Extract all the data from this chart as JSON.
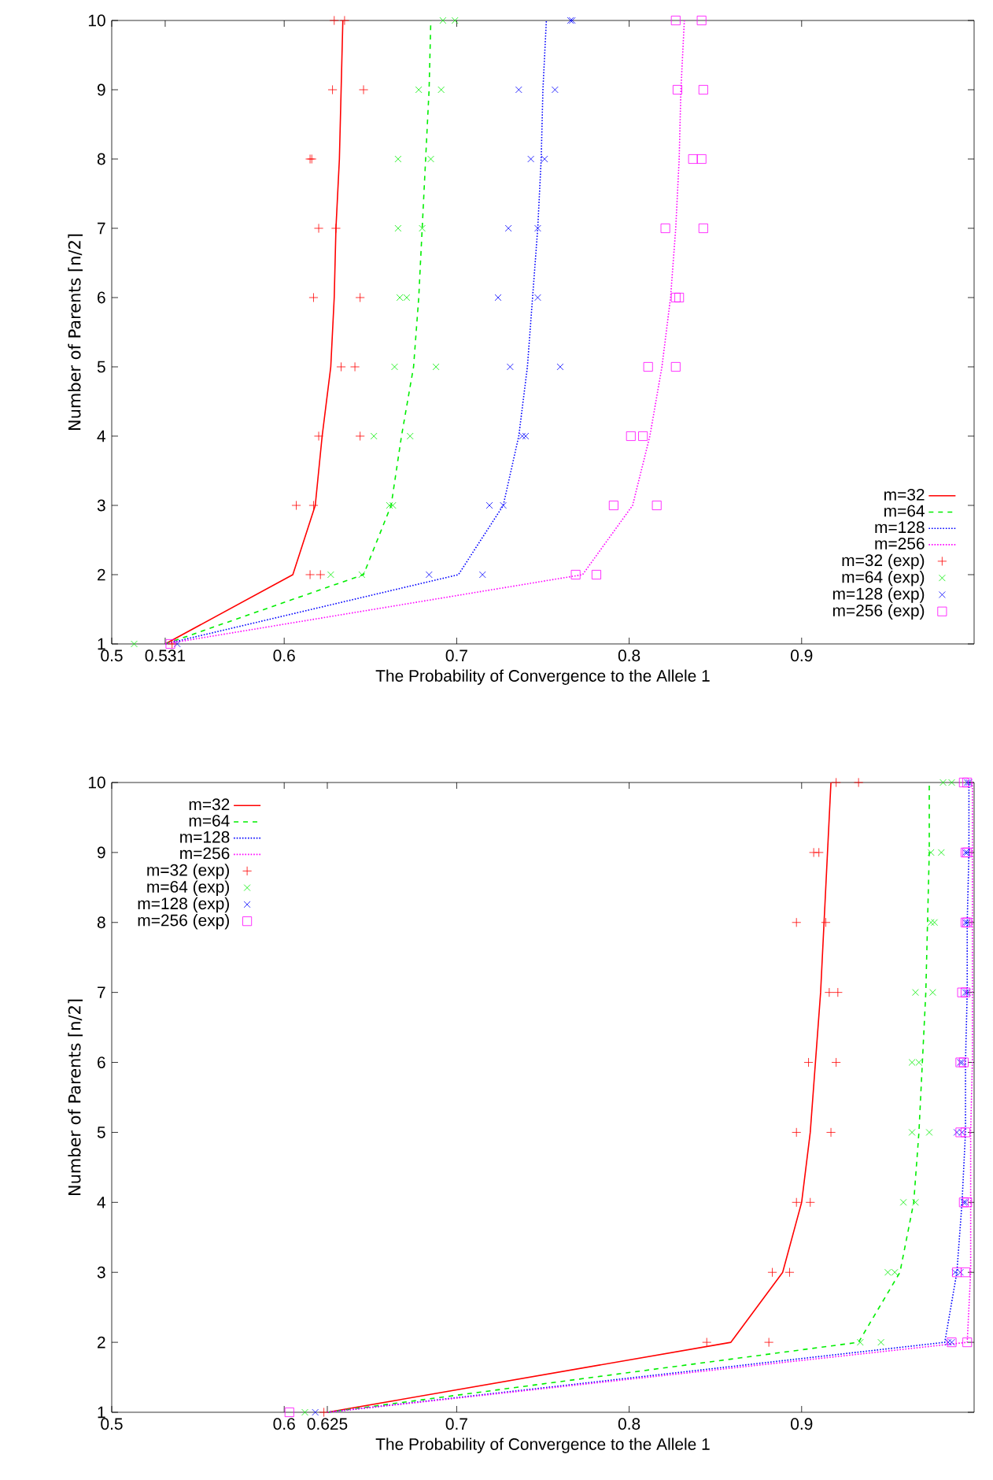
{
  "chart_data": [
    {
      "type": "line",
      "xlabel": "The Probability of Convergence to the Allele 1",
      "ylabel": "Number of Parents ⌈n/2⌉",
      "xlim": [
        0.5,
        1.0
      ],
      "xticks": [
        0.5,
        0.531,
        0.6,
        0.7,
        0.8,
        0.9
      ],
      "ylim": [
        1,
        10
      ],
      "yticks": [
        1,
        2,
        3,
        4,
        5,
        6,
        7,
        8,
        9,
        10
      ],
      "legend": "bottom right",
      "series": [
        {
          "name": "m=32",
          "color": "#ff0000",
          "line_style": "solid",
          "x": [
            0.531,
            0.605,
            0.618,
            0.622,
            0.627,
            0.629,
            0.63,
            0.632,
            0.633,
            0.634
          ],
          "values": [
            1,
            2,
            3,
            4,
            5,
            6,
            7,
            8,
            9,
            10
          ]
        },
        {
          "name": "m=64",
          "color": "#00ee00",
          "line_style": "dashed",
          "x": [
            0.531,
            0.646,
            0.662,
            0.668,
            0.675,
            0.678,
            0.68,
            0.682,
            0.684,
            0.685
          ],
          "values": [
            1,
            2,
            3,
            4,
            5,
            6,
            7,
            8,
            9,
            10
          ]
        },
        {
          "name": "m=128",
          "color": "#0000ff",
          "line_style": "dotted",
          "x": [
            0.531,
            0.701,
            0.727,
            0.736,
            0.741,
            0.744,
            0.747,
            0.749,
            0.75,
            0.752
          ],
          "values": [
            1,
            2,
            3,
            4,
            5,
            6,
            7,
            8,
            9,
            10
          ]
        },
        {
          "name": "m=256",
          "color": "#ff00ff",
          "line_style": "dotted",
          "x": [
            0.531,
            0.773,
            0.802,
            0.812,
            0.819,
            0.824,
            0.827,
            0.829,
            0.83,
            0.832
          ],
          "values": [
            1,
            2,
            3,
            4,
            5,
            6,
            7,
            8,
            9,
            10
          ]
        },
        {
          "name": "m=32 (exp)",
          "type": "scatter",
          "color": "#ff0000",
          "marker": "plus",
          "x": [
            0.535,
            0.615,
            0.621,
            0.607,
            0.617,
            0.62,
            0.644,
            0.633,
            0.641,
            0.617,
            0.644,
            0.62,
            0.63,
            0.615,
            0.616,
            0.628,
            0.646,
            0.629,
            0.635
          ],
          "values": [
            1,
            2,
            2,
            3,
            3,
            4,
            4,
            5,
            5,
            6,
            6,
            7,
            7,
            8,
            8,
            9,
            9,
            10,
            10
          ]
        },
        {
          "name": "m=64 (exp)",
          "type": "scatter",
          "color": "#00ee00",
          "marker": "cross",
          "x": [
            0.513,
            0.627,
            0.645,
            0.661,
            0.663,
            0.652,
            0.673,
            0.664,
            0.688,
            0.667,
            0.671,
            0.666,
            0.68,
            0.666,
            0.685,
            0.678,
            0.691,
            0.692,
            0.699
          ],
          "values": [
            1,
            2,
            2,
            3,
            3,
            4,
            4,
            5,
            5,
            6,
            6,
            7,
            7,
            8,
            8,
            9,
            9,
            10,
            10
          ]
        },
        {
          "name": "m=128 (exp)",
          "type": "scatter",
          "color": "#0000ff",
          "marker": "cross",
          "x": [
            0.538,
            0.684,
            0.715,
            0.719,
            0.727,
            0.738,
            0.74,
            0.731,
            0.76,
            0.724,
            0.747,
            0.73,
            0.747,
            0.743,
            0.751,
            0.736,
            0.757,
            0.766,
            0.767
          ],
          "values": [
            1,
            2,
            2,
            3,
            3,
            4,
            4,
            5,
            5,
            6,
            6,
            7,
            7,
            8,
            8,
            9,
            9,
            10,
            10
          ]
        },
        {
          "name": "m=256 (exp)",
          "type": "scatter",
          "color": "#ff00ff",
          "marker": "square",
          "x": [
            0.534,
            0.769,
            0.781,
            0.791,
            0.816,
            0.801,
            0.808,
            0.811,
            0.827,
            0.827,
            0.829,
            0.821,
            0.843,
            0.837,
            0.842,
            0.828,
            0.843,
            0.827,
            0.842
          ],
          "values": [
            1,
            2,
            2,
            3,
            3,
            4,
            4,
            5,
            5,
            6,
            6,
            7,
            7,
            8,
            8,
            9,
            9,
            10,
            10
          ]
        }
      ]
    },
    {
      "type": "line",
      "xlabel": "The Probability of Convergence to the Allele 1",
      "ylabel": "Number of Parents ⌈n/2⌉",
      "xlim": [
        0.5,
        1.0
      ],
      "xticks": [
        0.5,
        0.6,
        0.625,
        0.7,
        0.8,
        0.9
      ],
      "ylim": [
        1,
        10
      ],
      "yticks": [
        1,
        2,
        3,
        4,
        5,
        6,
        7,
        8,
        9,
        10
      ],
      "legend": "top left",
      "series": [
        {
          "name": "m=32",
          "color": "#ff0000",
          "line_style": "solid",
          "x": [
            0.625,
            0.859,
            0.889,
            0.9,
            0.905,
            0.908,
            0.911,
            0.913,
            0.915,
            0.917
          ],
          "values": [
            1,
            2,
            3,
            4,
            5,
            6,
            7,
            8,
            9,
            10
          ]
        },
        {
          "name": "m=64",
          "color": "#00ee00",
          "line_style": "dashed",
          "x": [
            0.625,
            0.933,
            0.957,
            0.965,
            0.968,
            0.97,
            0.972,
            0.973,
            0.974,
            0.974
          ],
          "values": [
            1,
            2,
            3,
            4,
            5,
            6,
            7,
            8,
            9,
            10
          ]
        },
        {
          "name": "m=128",
          "color": "#0000ff",
          "line_style": "dotted",
          "x": [
            0.625,
            0.983,
            0.99,
            0.993,
            0.995,
            0.995,
            0.996,
            0.996,
            0.997,
            0.997
          ],
          "values": [
            1,
            2,
            3,
            4,
            5,
            6,
            7,
            8,
            9,
            10
          ]
        },
        {
          "name": "m=256",
          "color": "#ff00ff",
          "line_style": "dotted",
          "x": [
            0.625,
            0.996,
            0.998,
            0.998,
            0.998,
            0.999,
            0.999,
            0.999,
            0.999,
            0.999
          ],
          "values": [
            1,
            2,
            3,
            4,
            5,
            6,
            7,
            8,
            9,
            10
          ]
        },
        {
          "name": "m=32 (exp)",
          "type": "scatter",
          "color": "#ff0000",
          "marker": "plus",
          "x": [
            0.623,
            0.845,
            0.881,
            0.883,
            0.893,
            0.897,
            0.905,
            0.897,
            0.917,
            0.904,
            0.92,
            0.916,
            0.921,
            0.897,
            0.914,
            0.907,
            0.91,
            0.92,
            0.933
          ],
          "values": [
            1,
            2,
            2,
            3,
            3,
            4,
            4,
            5,
            5,
            6,
            6,
            7,
            7,
            8,
            8,
            9,
            9,
            10,
            10
          ]
        },
        {
          "name": "m=64 (exp)",
          "type": "scatter",
          "color": "#00ee00",
          "marker": "cross",
          "x": [
            0.612,
            0.934,
            0.946,
            0.95,
            0.954,
            0.959,
            0.966,
            0.964,
            0.974,
            0.964,
            0.968,
            0.966,
            0.976,
            0.975,
            0.977,
            0.975,
            0.981,
            0.982,
            0.987
          ],
          "values": [
            1,
            2,
            2,
            3,
            3,
            4,
            4,
            5,
            5,
            6,
            6,
            7,
            7,
            8,
            8,
            9,
            9,
            10,
            10
          ]
        },
        {
          "name": "m=128 (exp)",
          "type": "scatter",
          "color": "#0000ff",
          "marker": "cross",
          "x": [
            0.618,
            0.985,
            0.987,
            0.989,
            0.992,
            0.994,
            0.995,
            0.99,
            0.993,
            0.992,
            0.993,
            0.995,
            0.996,
            0.995,
            0.996,
            0.995,
            0.996,
            0.996,
            0.997
          ],
          "values": [
            1,
            2,
            2,
            3,
            3,
            4,
            4,
            5,
            5,
            6,
            6,
            7,
            7,
            8,
            8,
            9,
            9,
            10,
            10
          ]
        },
        {
          "name": "m=256 (exp)",
          "type": "scatter",
          "color": "#ff00ff",
          "marker": "square",
          "x": [
            0.603,
            0.987,
            0.996,
            0.99,
            0.995,
            0.994,
            0.996,
            0.992,
            0.995,
            0.992,
            0.994,
            0.993,
            0.995,
            0.995,
            0.996,
            0.995,
            0.996,
            0.994,
            0.996
          ],
          "values": [
            1,
            2,
            2,
            3,
            3,
            4,
            4,
            5,
            5,
            6,
            6,
            7,
            7,
            8,
            8,
            9,
            9,
            10,
            10
          ]
        }
      ]
    }
  ]
}
